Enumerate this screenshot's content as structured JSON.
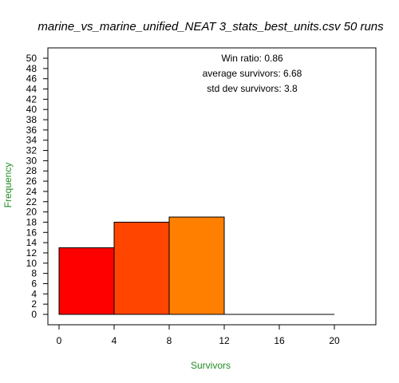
{
  "chart_data": {
    "type": "bar",
    "title": "marine_vs_marine_unified_NEAT 3_stats_best_units.csv 50 runs",
    "xlabel": "Survivors",
    "ylabel": "Frequency",
    "bins": [
      {
        "from": 0,
        "to": 4,
        "count": 13,
        "color": "#ff0000"
      },
      {
        "from": 4,
        "to": 8,
        "count": 18,
        "color": "#ff4500"
      },
      {
        "from": 8,
        "to": 12,
        "count": 19,
        "color": "#ff7f00"
      },
      {
        "from": 12,
        "to": 16,
        "count": 0,
        "color": "#ffffff"
      },
      {
        "from": 16,
        "to": 20,
        "count": 0,
        "color": "#ffffff"
      }
    ],
    "xticks": [
      0,
      4,
      8,
      12,
      16,
      20
    ],
    "yticks": [
      0,
      2,
      4,
      6,
      8,
      10,
      12,
      14,
      16,
      18,
      20,
      22,
      24,
      26,
      28,
      30,
      32,
      34,
      36,
      38,
      40,
      42,
      44,
      46,
      48,
      50
    ],
    "xlim": [
      -1,
      23
    ],
    "ylim": [
      0,
      50
    ],
    "label_color": "#228b22",
    "annotations": [
      "Win ratio: 0.86",
      "average survivors: 6.68",
      "std dev survivors: 3.8"
    ]
  }
}
